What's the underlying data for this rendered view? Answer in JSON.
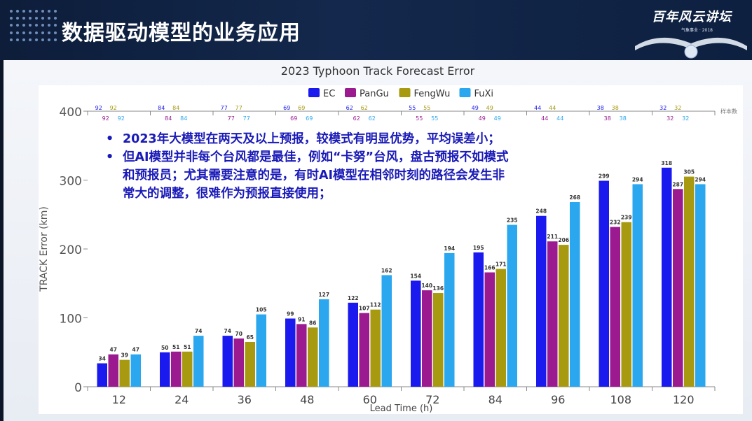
{
  "slide": {
    "title": "数据驱动模型的业务应用",
    "logo_text": "百年风云讲坛",
    "logo_sub": "气象事业 · 2018"
  },
  "notes": [
    {
      "bullet": "•",
      "text": "2023年大模型在两天及以上预报，较模式有明显优势，平均误差小；"
    },
    {
      "bullet": "•",
      "text": "但AI模型并非每个台风都是最佳，例如“卡努”台风，盘古预报不如模式和预报员；尤其需要注意的是，有时AI模型在相邻时刻的路径会发生非常大的调整，很难作为预报直接使用；"
    }
  ],
  "colors": {
    "EC": "#1a1aee",
    "PanGu": "#9b1a8f",
    "FengWu": "#a79a10",
    "FuXi": "#2aa7ee"
  },
  "chart_data": {
    "type": "bar",
    "title": "2023 Typhoon Track Forecast Error",
    "xlabel": "Lead Time (h)",
    "ylabel": "TRACK Error (km)",
    "ylim": [
      0,
      400
    ],
    "yticks": [
      0,
      100,
      200,
      300,
      400
    ],
    "categories": [
      "12",
      "24",
      "36",
      "48",
      "60",
      "72",
      "84",
      "96",
      "108",
      "120"
    ],
    "series": [
      {
        "name": "EC",
        "values": [
          34,
          50,
          74,
          99,
          122,
          154,
          195,
          248,
          299,
          318
        ]
      },
      {
        "name": "PanGu",
        "values": [
          47,
          51,
          70,
          91,
          107,
          140,
          166,
          211,
          232,
          287
        ]
      },
      {
        "name": "FengWu",
        "values": [
          39,
          51,
          65,
          86,
          112,
          136,
          171,
          206,
          239,
          305
        ]
      },
      {
        "name": "FuXi",
        "values": [
          47,
          74,
          105,
          127,
          162,
          194,
          235,
          268,
          294,
          294
        ]
      }
    ],
    "sample_counts": [
      [
        92,
        92,
        92,
        92
      ],
      [
        84,
        84,
        84,
        84
      ],
      [
        77,
        77,
        77,
        77
      ],
      [
        69,
        69,
        69,
        69
      ],
      [
        62,
        62,
        62,
        62
      ],
      [
        55,
        55,
        55,
        55
      ],
      [
        49,
        49,
        49,
        49
      ],
      [
        44,
        44,
        44,
        44
      ],
      [
        38,
        38,
        38,
        38
      ],
      [
        32,
        32,
        32,
        32
      ]
    ],
    "sample_label": "样本数",
    "legend_position": "top-center",
    "grid": false
  }
}
